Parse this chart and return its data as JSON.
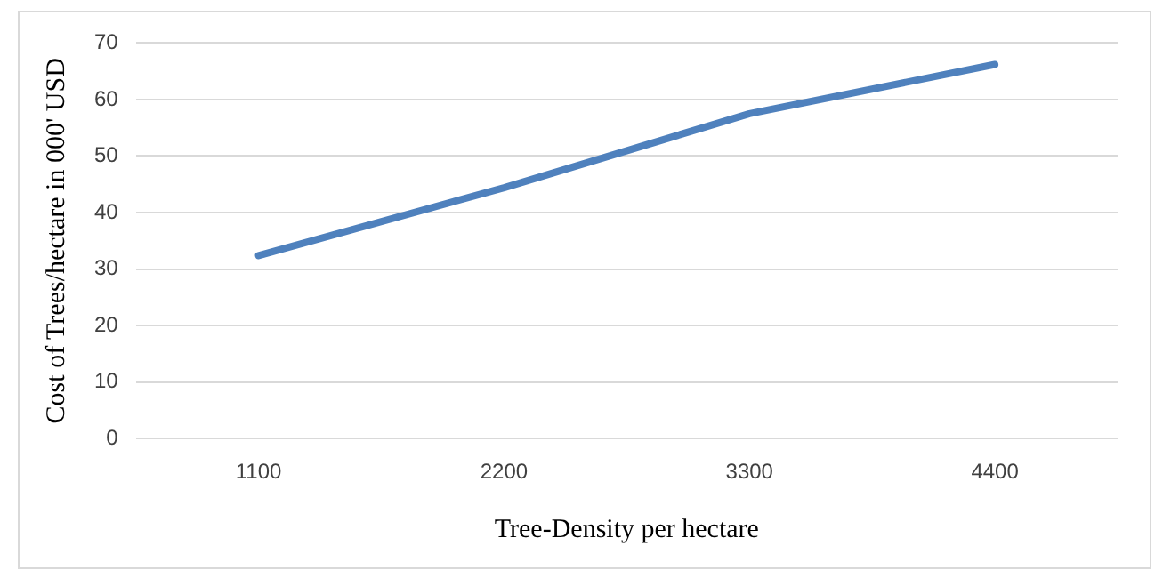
{
  "chart_data": {
    "type": "line",
    "xlabel": "Tree-Density per hectare",
    "ylabel": "Cost of Trees/hectare in 000' USD",
    "categories": [
      "1100",
      "2200",
      "3300",
      "4400"
    ],
    "series": [
      {
        "color": "#4f81bd",
        "values": [
          32.4,
          44.4,
          57.5,
          66.2
        ]
      }
    ],
    "ylim": [
      0,
      70
    ],
    "yticks": [
      0,
      10,
      20,
      30,
      40,
      50,
      60,
      70
    ],
    "grid": "y",
    "legend": false,
    "marker": "none",
    "line_style": "solid"
  }
}
